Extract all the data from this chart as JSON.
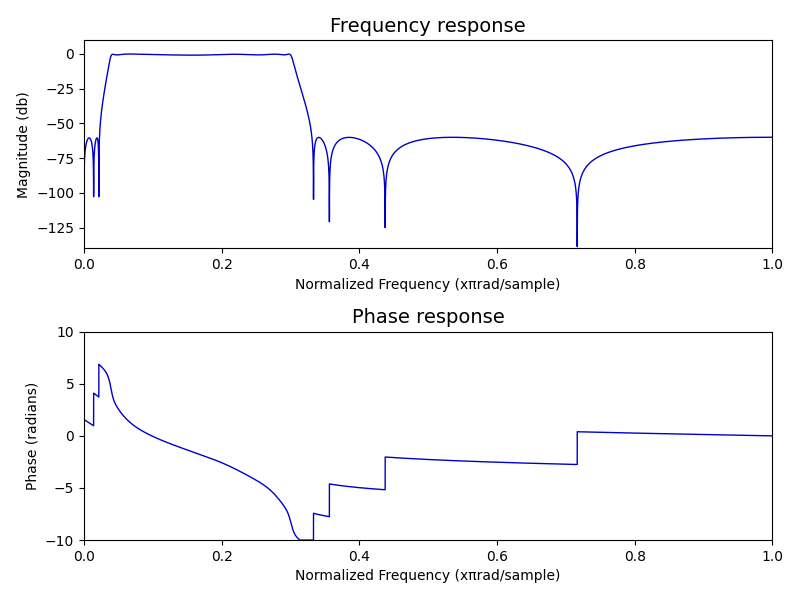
{
  "title_freq": "Frequency response",
  "title_phase": "Phase response",
  "xlabel": "Normalized Frequency (xπrad/sample)",
  "ylabel_freq": "Magnitude (db)",
  "ylabel_phase": "Phase (radians)",
  "ylim_freq": [
    -140,
    10
  ],
  "ylim_phase": [
    -10,
    10
  ],
  "xlim": [
    0.0,
    1.0
  ],
  "line_color": "#0000cc",
  "line_width": 1.0,
  "bg_color": "#ffffff",
  "title_fontsize": 14,
  "tick_fontsize": 12
}
